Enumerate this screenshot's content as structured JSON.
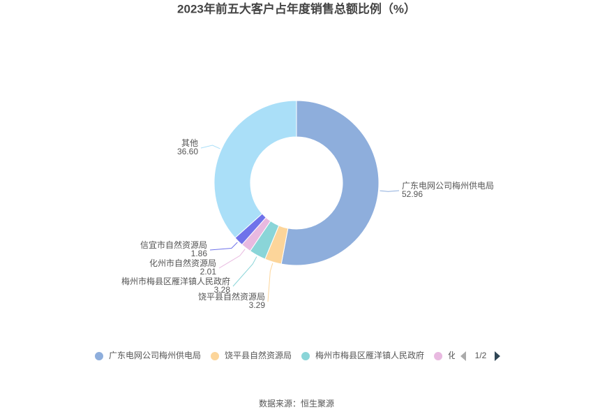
{
  "chart_data": {
    "type": "pie",
    "title": "2023年前五大客户占年度销售总额比例（%）",
    "categories": [
      "广东电网公司梅州供电局",
      "饶平县自然资源局",
      "梅州市梅县区雁洋镇人民政府",
      "化州市自然资源局",
      "信宜市自然资源局",
      "其他"
    ],
    "values": [
      52.96,
      3.29,
      3.28,
      2.01,
      1.86,
      36.6
    ],
    "value_labels": [
      "52.96",
      "3.29",
      "3.28",
      "2.01",
      "1.86",
      "36.60"
    ],
    "colors": [
      "#8eaedc",
      "#fcd59a",
      "#8ad5d8",
      "#e8b9e0",
      "#6f72ea",
      "#aadff8"
    ],
    "donut": true,
    "legend": "bottom",
    "legend_page": "1/2",
    "source": "数据来源：恒生聚源"
  }
}
